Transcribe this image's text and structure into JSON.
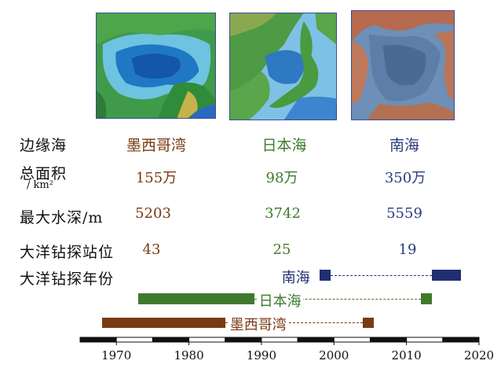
{
  "maps": [
    {
      "name": "墨西哥湾",
      "color": "#7a3a12"
    },
    {
      "name": "日本海",
      "color": "#3f7a2c"
    },
    {
      "name": "南海",
      "color": "#2b3b7e"
    }
  ],
  "rows": {
    "sea_label": "边缘海",
    "area_label": "总面积",
    "area_unit": "/ km²",
    "depth_label": "最大水深/m",
    "sites_label": "大洋钻探站位",
    "years_label": "大洋钻探年份"
  },
  "table": [
    {
      "sea": "墨西哥湾",
      "area": "155万",
      "depth": "5203",
      "sites": "43"
    },
    {
      "sea": "日本海",
      "area": "98万",
      "depth": "3742",
      "sites": "25"
    },
    {
      "sea": "南海",
      "area": "350万",
      "depth": "5559",
      "sites": "19"
    }
  ],
  "chart_data": {
    "type": "timeline",
    "x_ticks": [
      "1970",
      "1980",
      "1990",
      "2000",
      "2010",
      "2020"
    ],
    "xlim": [
      1965,
      2020
    ],
    "series": [
      {
        "name": "南海",
        "color": "#1f2f70",
        "periods": [
          [
            1998,
            1999.5
          ],
          [
            2013.5,
            2017.5
          ]
        ]
      },
      {
        "name": "日本海",
        "color": "#3f7a2c",
        "periods": [
          [
            1973,
            1989
          ],
          [
            2012,
            2013.5
          ]
        ]
      },
      {
        "name": "墨西哥湾",
        "color": "#7a3a12",
        "periods": [
          [
            1968,
            1985
          ],
          [
            2004,
            2005.5
          ]
        ]
      }
    ]
  }
}
